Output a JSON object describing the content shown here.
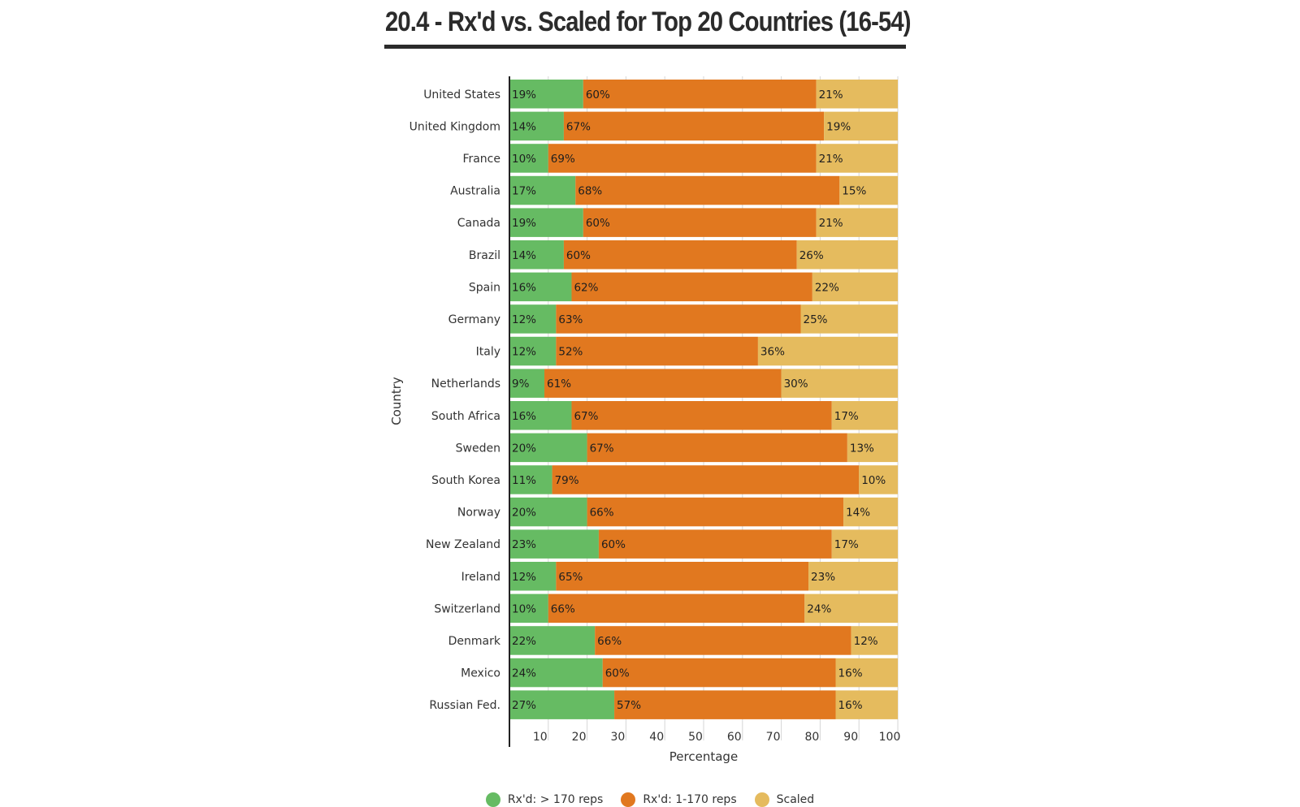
{
  "chart_data": {
    "type": "bar",
    "orientation": "horizontal",
    "stacked": true,
    "title": "20.4 - Rx'd vs. Scaled for Top 20 Countries (16-54)",
    "xlabel": "Percentage",
    "ylabel": "Country",
    "xlim": [
      0,
      100
    ],
    "xticks": [
      10,
      20,
      30,
      40,
      50,
      60,
      70,
      80,
      90,
      100
    ],
    "grid": true,
    "legend_position": "bottom",
    "categories": [
      "United States",
      "United Kingdom",
      "France",
      "Australia",
      "Canada",
      "Brazil",
      "Spain",
      "Germany",
      "Italy",
      "Netherlands",
      "South Africa",
      "Sweden",
      "South Korea",
      "Norway",
      "New Zealand",
      "Ireland",
      "Switzerland",
      "Denmark",
      "Mexico",
      "Russian Fed."
    ],
    "series": [
      {
        "name": "Rx'd: > 170 reps",
        "color": "#66bb63",
        "values": [
          19,
          14,
          10,
          17,
          19,
          14,
          16,
          12,
          12,
          9,
          16,
          20,
          11,
          20,
          23,
          12,
          10,
          22,
          24,
          27
        ]
      },
      {
        "name": "Rx'd: 1-170 reps",
        "color": "#e1781f",
        "values": [
          60,
          67,
          69,
          68,
          60,
          60,
          62,
          63,
          52,
          61,
          67,
          67,
          79,
          66,
          60,
          65,
          66,
          66,
          60,
          57
        ]
      },
      {
        "name": "Scaled",
        "color": "#e5bb5e",
        "values": [
          21,
          19,
          21,
          15,
          21,
          26,
          22,
          25,
          36,
          30,
          17,
          13,
          10,
          14,
          17,
          23,
          24,
          12,
          16,
          16
        ]
      }
    ]
  }
}
